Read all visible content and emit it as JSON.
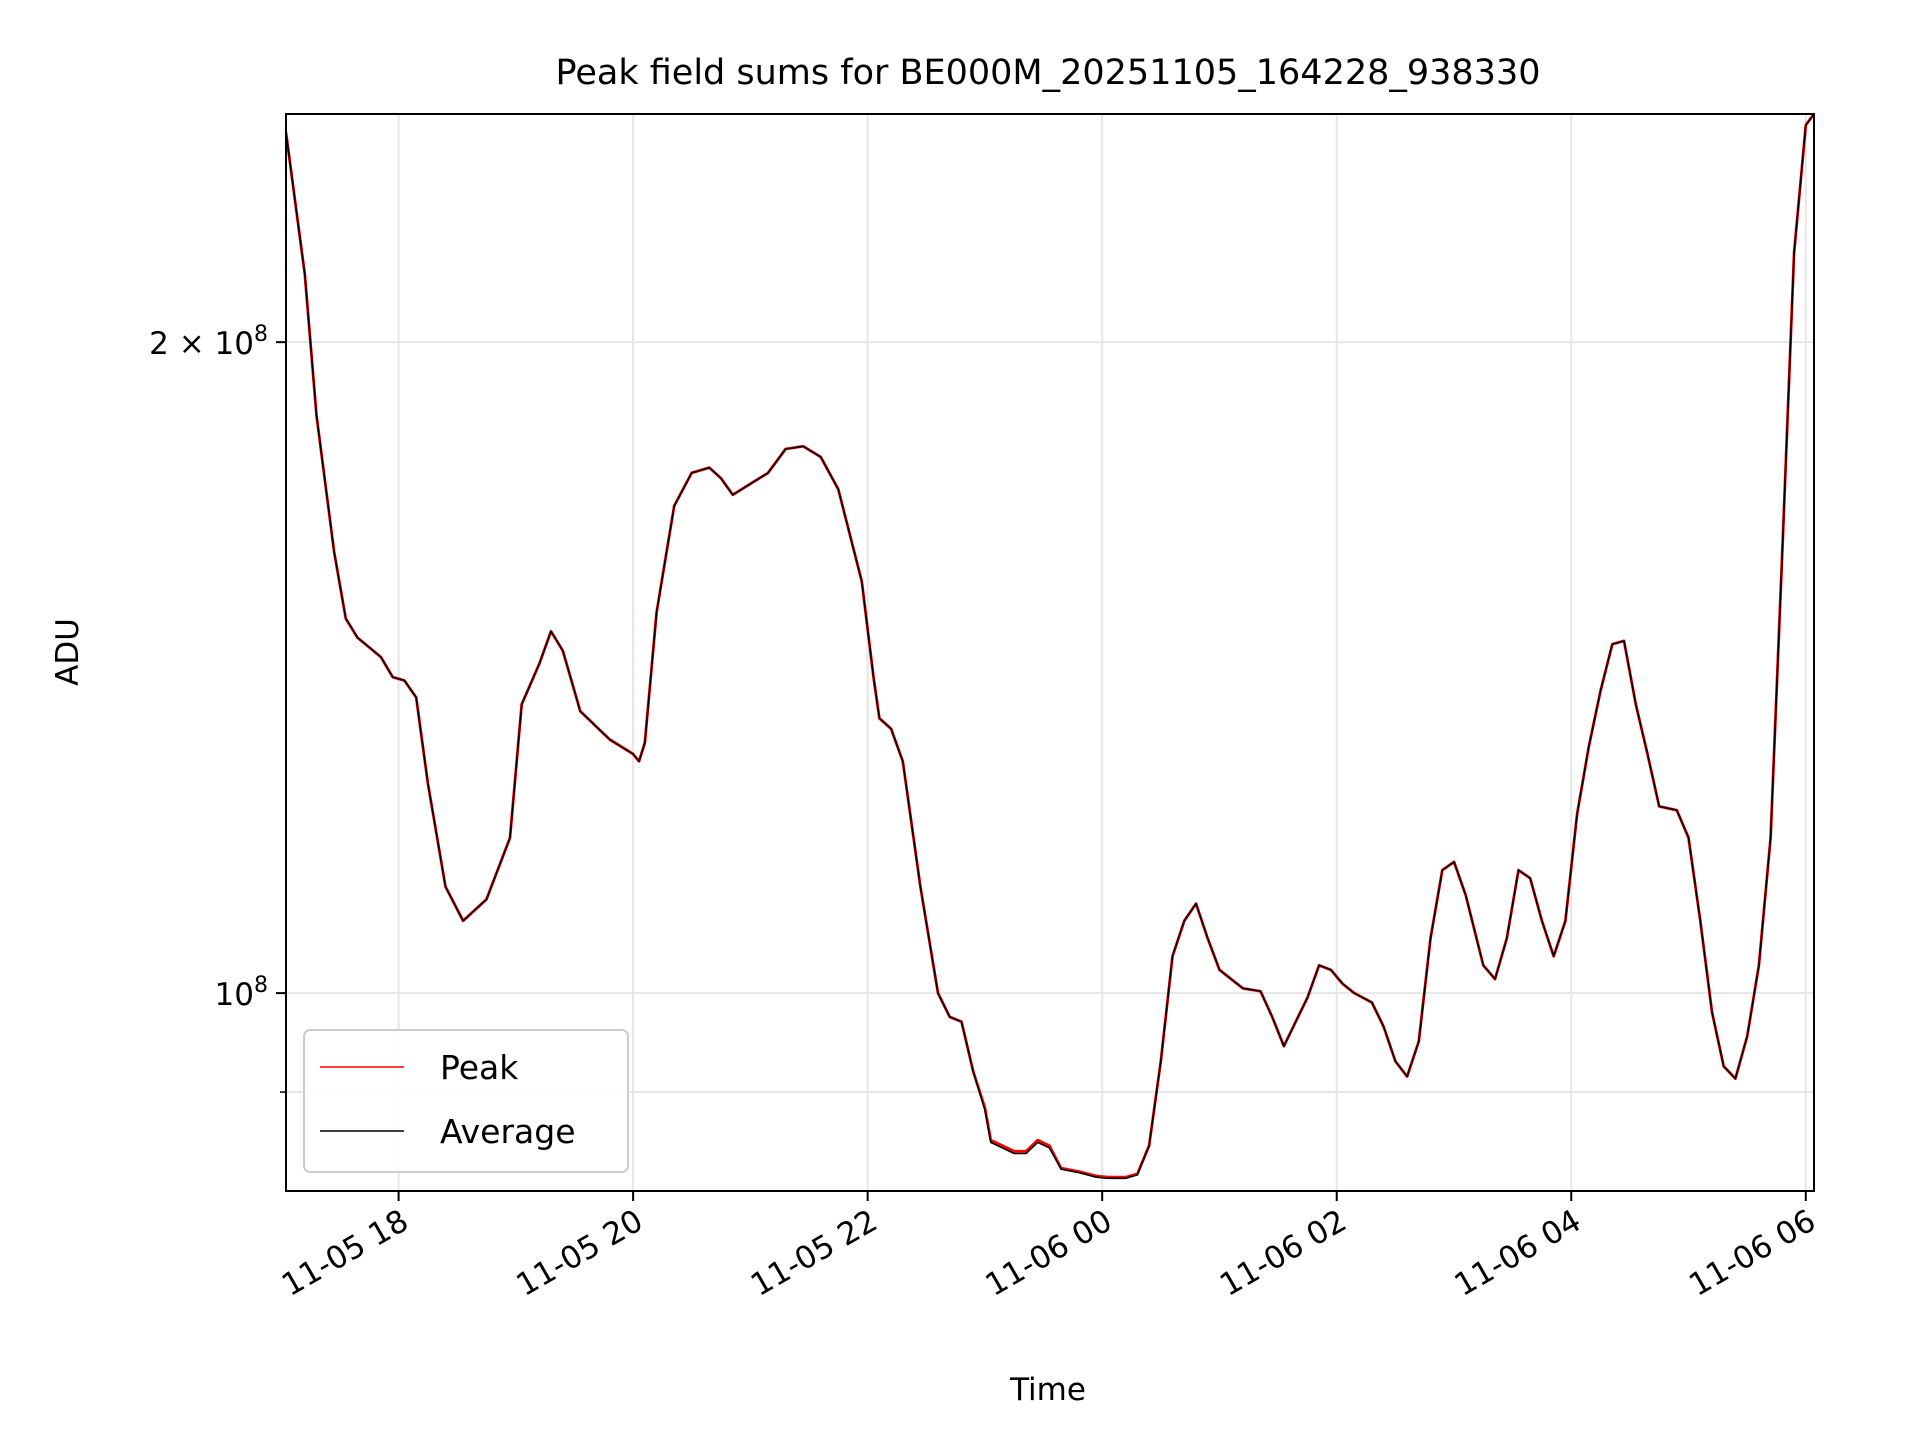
{
  "chart_data": {
    "type": "line",
    "title": "Peak field sums for BE000M_20251105_164228_938330",
    "xlabel": "Time",
    "ylabel": "ADU",
    "yscale": "log",
    "grid": true,
    "legend_position": "lower-left",
    "x_unit": "hours since 11-05 16:00",
    "xlim": [
      1.04,
      14.07
    ],
    "ylim": [
      81000000,
      255000000
    ],
    "x_ticks": [
      {
        "x": 2,
        "label": "11-05 18"
      },
      {
        "x": 4,
        "label": "11-05 20"
      },
      {
        "x": 6,
        "label": "11-05 22"
      },
      {
        "x": 8,
        "label": "11-06 00"
      },
      {
        "x": 10,
        "label": "11-06 02"
      },
      {
        "x": 12,
        "label": "11-06 04"
      },
      {
        "x": 14,
        "label": "11-06 06"
      }
    ],
    "y_ticks": [
      {
        "y": 100000000,
        "base": "10",
        "exp": "8"
      },
      {
        "y": 200000000,
        "mant": "2",
        "times": "×",
        "base": "10",
        "exp": "8"
      }
    ],
    "y_minor_ticks": [
      90000000
    ],
    "colors": {
      "peak": "#ff0000",
      "average": "#000000",
      "grid": "#e6e6e6"
    },
    "series": [
      {
        "name": "Peak",
        "color": "#ff0000",
        "points": [
          [
            1.04,
            250000000
          ],
          [
            1.2,
            215000000
          ],
          [
            1.3,
            185000000
          ],
          [
            1.45,
            160000000
          ],
          [
            1.55,
            149000000
          ],
          [
            1.65,
            146000000
          ],
          [
            1.75,
            144500000
          ],
          [
            1.85,
            143000000
          ],
          [
            1.95,
            140000000
          ],
          [
            2.05,
            139500000
          ],
          [
            2.15,
            137000000
          ],
          [
            2.25,
            125000000
          ],
          [
            2.4,
            112000000
          ],
          [
            2.55,
            108000000
          ],
          [
            2.75,
            110500000
          ],
          [
            2.95,
            118000000
          ],
          [
            3.05,
            136000000
          ],
          [
            3.2,
            142000000
          ],
          [
            3.3,
            147000000
          ],
          [
            3.4,
            144000000
          ],
          [
            3.55,
            135000000
          ],
          [
            3.8,
            131000000
          ],
          [
            4.0,
            129000000
          ],
          [
            4.05,
            128000000
          ],
          [
            4.1,
            130500000
          ],
          [
            4.2,
            150000000
          ],
          [
            4.35,
            168000000
          ],
          [
            4.5,
            174000000
          ],
          [
            4.65,
            175000000
          ],
          [
            4.75,
            173000000
          ],
          [
            4.85,
            170000000
          ],
          [
            5.0,
            172000000
          ],
          [
            5.15,
            174000000
          ],
          [
            5.3,
            178500000
          ],
          [
            5.45,
            179000000
          ],
          [
            5.6,
            177000000
          ],
          [
            5.75,
            171000000
          ],
          [
            5.95,
            155000000
          ],
          [
            6.05,
            140000000
          ],
          [
            6.1,
            134000000
          ],
          [
            6.2,
            132500000
          ],
          [
            6.3,
            128000000
          ],
          [
            6.45,
            112000000
          ],
          [
            6.6,
            100000000
          ],
          [
            6.7,
            97500000
          ],
          [
            6.8,
            97000000
          ],
          [
            6.9,
            92000000
          ],
          [
            7.0,
            88500000
          ],
          [
            7.05,
            85500000
          ],
          [
            7.25,
            84500000
          ],
          [
            7.35,
            84500000
          ],
          [
            7.45,
            85500000
          ],
          [
            7.55,
            85000000
          ],
          [
            7.65,
            83000000
          ],
          [
            7.8,
            82700000
          ],
          [
            7.95,
            82300000
          ],
          [
            8.05,
            82200000
          ],
          [
            8.2,
            82200000
          ],
          [
            8.3,
            82500000
          ],
          [
            8.4,
            85000000
          ],
          [
            8.5,
            93000000
          ],
          [
            8.6,
            104000000
          ],
          [
            8.7,
            108000000
          ],
          [
            8.8,
            110000000
          ],
          [
            8.9,
            106000000
          ],
          [
            9.0,
            102500000
          ],
          [
            9.1,
            101500000
          ],
          [
            9.2,
            100500000
          ],
          [
            9.35,
            100200000
          ],
          [
            9.45,
            97500000
          ],
          [
            9.55,
            94500000
          ],
          [
            9.65,
            97000000
          ],
          [
            9.75,
            99500000
          ],
          [
            9.85,
            103000000
          ],
          [
            9.95,
            102500000
          ],
          [
            10.05,
            101000000
          ],
          [
            10.15,
            100000000
          ],
          [
            10.3,
            99000000
          ],
          [
            10.4,
            96500000
          ],
          [
            10.5,
            93000000
          ],
          [
            10.6,
            91500000
          ],
          [
            10.7,
            95000000
          ],
          [
            10.8,
            106000000
          ],
          [
            10.9,
            114000000
          ],
          [
            11.0,
            115000000
          ],
          [
            11.1,
            111000000
          ],
          [
            11.25,
            103000000
          ],
          [
            11.35,
            101500000
          ],
          [
            11.45,
            106000000
          ],
          [
            11.55,
            114000000
          ],
          [
            11.65,
            113000000
          ],
          [
            11.75,
            108000000
          ],
          [
            11.85,
            104000000
          ],
          [
            11.95,
            108000000
          ],
          [
            12.05,
            121000000
          ],
          [
            12.15,
            130000000
          ],
          [
            12.25,
            138000000
          ],
          [
            12.35,
            145000000
          ],
          [
            12.45,
            145500000
          ],
          [
            12.55,
            136000000
          ],
          [
            12.65,
            129000000
          ],
          [
            12.75,
            122000000
          ],
          [
            12.9,
            121500000
          ],
          [
            13.0,
            118000000
          ],
          [
            13.1,
            108000000
          ],
          [
            13.2,
            98000000
          ],
          [
            13.3,
            92500000
          ],
          [
            13.4,
            91300000
          ],
          [
            13.5,
            95500000
          ],
          [
            13.6,
            103000000
          ],
          [
            13.7,
            118000000
          ],
          [
            13.8,
            160000000
          ],
          [
            13.9,
            220000000
          ],
          [
            14.0,
            252000000
          ],
          [
            14.07,
            255000000
          ]
        ]
      },
      {
        "name": "Average",
        "color": "#000000",
        "points": [
          [
            1.04,
            250000000
          ],
          [
            1.2,
            215000000
          ],
          [
            1.3,
            185000000
          ],
          [
            1.45,
            160000000
          ],
          [
            1.55,
            149000000
          ],
          [
            1.65,
            146000000
          ],
          [
            1.75,
            144500000
          ],
          [
            1.85,
            143000000
          ],
          [
            1.95,
            140000000
          ],
          [
            2.05,
            139500000
          ],
          [
            2.15,
            137000000
          ],
          [
            2.25,
            125000000
          ],
          [
            2.4,
            112000000
          ],
          [
            2.55,
            108000000
          ],
          [
            2.75,
            110500000
          ],
          [
            2.95,
            118000000
          ],
          [
            3.05,
            136000000
          ],
          [
            3.2,
            142000000
          ],
          [
            3.3,
            147000000
          ],
          [
            3.4,
            144000000
          ],
          [
            3.55,
            135000000
          ],
          [
            3.8,
            131000000
          ],
          [
            4.0,
            129000000
          ],
          [
            4.05,
            128000000
          ],
          [
            4.1,
            130500000
          ],
          [
            4.2,
            150000000
          ],
          [
            4.35,
            168000000
          ],
          [
            4.5,
            174000000
          ],
          [
            4.65,
            175000000
          ],
          [
            4.75,
            173000000
          ],
          [
            4.85,
            170000000
          ],
          [
            5.0,
            172000000
          ],
          [
            5.15,
            174000000
          ],
          [
            5.3,
            178500000
          ],
          [
            5.45,
            179000000
          ],
          [
            5.6,
            177000000
          ],
          [
            5.75,
            171000000
          ],
          [
            5.95,
            155000000
          ],
          [
            6.05,
            140000000
          ],
          [
            6.1,
            134000000
          ],
          [
            6.2,
            132500000
          ],
          [
            6.3,
            128000000
          ],
          [
            6.45,
            112000000
          ],
          [
            6.6,
            100000000
          ],
          [
            6.7,
            97500000
          ],
          [
            6.8,
            97000000
          ],
          [
            6.9,
            92000000
          ],
          [
            7.0,
            88300000
          ],
          [
            7.05,
            85300000
          ],
          [
            7.25,
            84300000
          ],
          [
            7.35,
            84300000
          ],
          [
            7.45,
            85300000
          ],
          [
            7.55,
            84800000
          ],
          [
            7.65,
            82900000
          ],
          [
            7.8,
            82600000
          ],
          [
            7.95,
            82200000
          ],
          [
            8.05,
            82100000
          ],
          [
            8.2,
            82100000
          ],
          [
            8.3,
            82400000
          ],
          [
            8.4,
            85000000
          ],
          [
            8.5,
            93000000
          ],
          [
            8.6,
            104000000
          ],
          [
            8.7,
            108000000
          ],
          [
            8.8,
            110000000
          ],
          [
            8.9,
            106000000
          ],
          [
            9.0,
            102500000
          ],
          [
            9.1,
            101500000
          ],
          [
            9.2,
            100500000
          ],
          [
            9.35,
            100200000
          ],
          [
            9.45,
            97500000
          ],
          [
            9.55,
            94500000
          ],
          [
            9.65,
            97000000
          ],
          [
            9.75,
            99500000
          ],
          [
            9.85,
            103000000
          ],
          [
            9.95,
            102500000
          ],
          [
            10.05,
            101000000
          ],
          [
            10.15,
            100000000
          ],
          [
            10.3,
            99000000
          ],
          [
            10.4,
            96500000
          ],
          [
            10.5,
            93000000
          ],
          [
            10.6,
            91500000
          ],
          [
            10.7,
            95000000
          ],
          [
            10.8,
            106000000
          ],
          [
            10.9,
            114000000
          ],
          [
            11.0,
            115000000
          ],
          [
            11.1,
            111000000
          ],
          [
            11.25,
            103000000
          ],
          [
            11.35,
            101500000
          ],
          [
            11.45,
            106000000
          ],
          [
            11.55,
            114000000
          ],
          [
            11.65,
            113000000
          ],
          [
            11.75,
            108000000
          ],
          [
            11.85,
            104000000
          ],
          [
            11.95,
            108000000
          ],
          [
            12.05,
            121000000
          ],
          [
            12.15,
            130000000
          ],
          [
            12.25,
            138000000
          ],
          [
            12.35,
            145000000
          ],
          [
            12.45,
            145500000
          ],
          [
            12.55,
            136000000
          ],
          [
            12.65,
            129000000
          ],
          [
            12.75,
            122000000
          ],
          [
            12.9,
            121500000
          ],
          [
            13.0,
            118000000
          ],
          [
            13.1,
            108000000
          ],
          [
            13.2,
            98000000
          ],
          [
            13.3,
            92500000
          ],
          [
            13.4,
            91300000
          ],
          [
            13.5,
            95500000
          ],
          [
            13.6,
            103000000
          ],
          [
            13.7,
            118000000
          ],
          [
            13.8,
            160000000
          ],
          [
            13.9,
            220000000
          ],
          [
            14.0,
            252000000
          ],
          [
            14.07,
            255000000
          ]
        ]
      }
    ]
  }
}
